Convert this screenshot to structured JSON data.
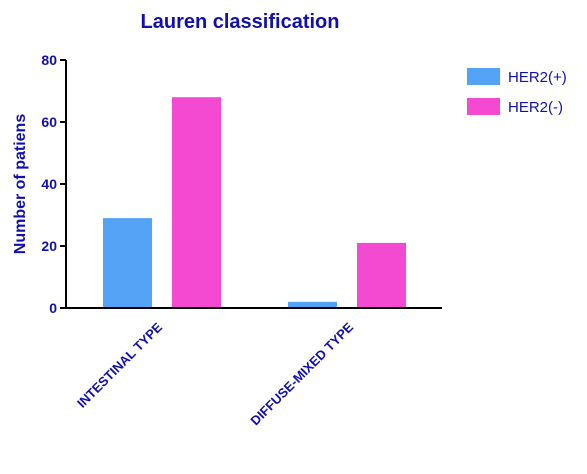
{
  "chart_data": {
    "type": "bar",
    "title": "Lauren classification",
    "xlabel": "",
    "ylabel": "Number of patiens",
    "ylim": [
      0,
      80
    ],
    "yticks": [
      "0",
      "20",
      "40",
      "60",
      "80"
    ],
    "categories": [
      "INTESTINAL TYPE",
      "DIFFUSE-MIXED TYPE"
    ],
    "series": [
      {
        "name": "HER2(+)",
        "values": [
          29,
          2
        ],
        "color": "#55a3f7"
      },
      {
        "name": "HER2(-)",
        "values": [
          68,
          21
        ],
        "color": "#f34ad1"
      }
    ],
    "legend_position": "top-right",
    "grid": false
  }
}
